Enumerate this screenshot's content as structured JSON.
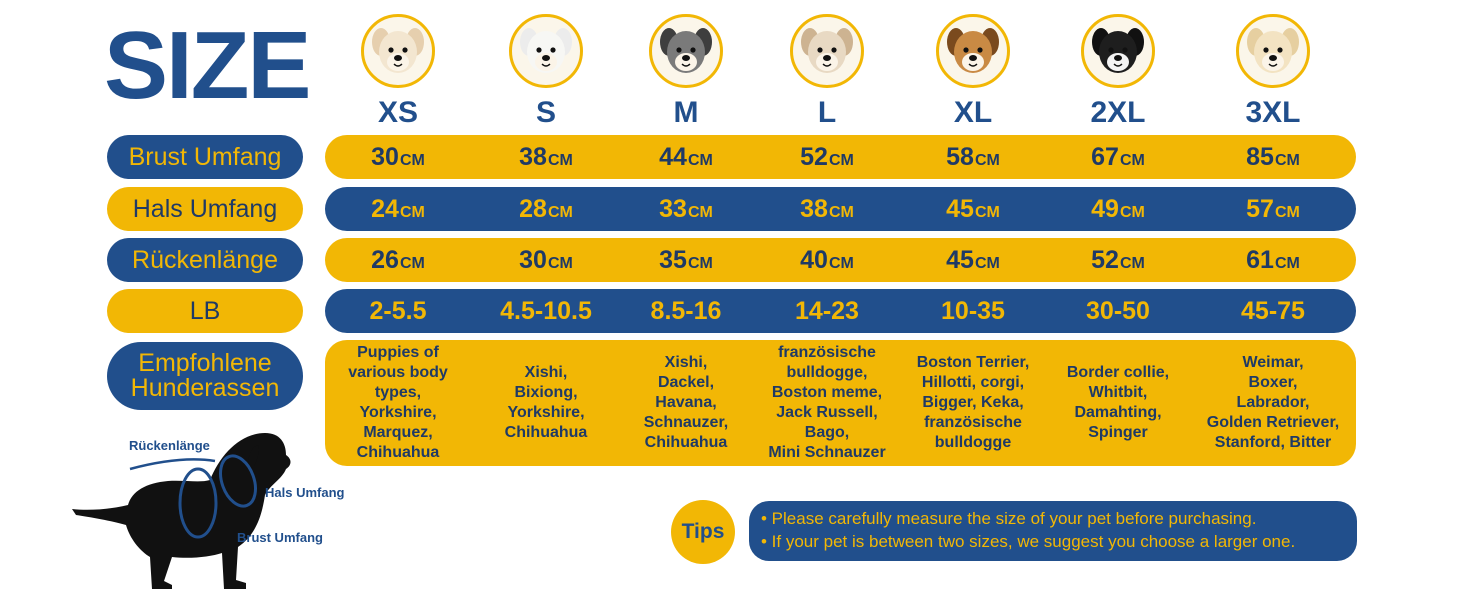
{
  "title": "SIZE",
  "sizes": [
    {
      "label": "XS",
      "icon": "chihuahua-icon"
    },
    {
      "label": "S",
      "icon": "westie-icon"
    },
    {
      "label": "M",
      "icon": "schnauzer-icon"
    },
    {
      "label": "L",
      "icon": "french-bulldog-icon"
    },
    {
      "label": "XL",
      "icon": "beagle-icon"
    },
    {
      "label": "2XL",
      "icon": "border-collie-icon"
    },
    {
      "label": "3XL",
      "icon": "labrador-icon"
    }
  ],
  "rows": {
    "brust": {
      "label": "Brust Umfang",
      "values": [
        "30",
        "38",
        "44",
        "52",
        "58",
        "67",
        "85"
      ],
      "unit": "CM"
    },
    "hals": {
      "label": "Hals Umfang",
      "values": [
        "24",
        "28",
        "33",
        "38",
        "45",
        "49",
        "57"
      ],
      "unit": "CM"
    },
    "ruecken": {
      "label": "Rückenlänge",
      "values": [
        "26",
        "30",
        "35",
        "40",
        "45",
        "52",
        "61"
      ],
      "unit": "CM"
    },
    "lb": {
      "label": "LB",
      "values": [
        "2-5.5",
        "4.5-10.5",
        "8.5-16",
        "14-23",
        "10-35",
        "30-50",
        "45-75"
      ]
    },
    "breeds": {
      "label_line1": "Empfohlene",
      "label_line2": "Hunderassen",
      "values": [
        [
          "Puppies of",
          "various body",
          "types,",
          "Yorkshire,",
          "Marquez,",
          "Chihuahua"
        ],
        [
          "Xishi,",
          "Bixiong,",
          "Yorkshire,",
          "Chihuahua"
        ],
        [
          "Xishi,",
          "Dackel,",
          "Havana,",
          "Schnauzer,",
          "Chihuahua"
        ],
        [
          "französische",
          "bulldogge,",
          "Boston meme,",
          "Jack Russell,",
          "Bago,",
          "Mini Schnauzer"
        ],
        [
          "Boston Terrier,",
          "Hillotti, corgi,",
          "Bigger, Keka,",
          "französische",
          "bulldogge"
        ],
        [
          "Border collie,",
          "Whitbit,",
          "Damahting,",
          "Spinger"
        ],
        [
          "Weimar,",
          "Boxer,",
          "Labrador,",
          "Golden Retriever,",
          "Stanford, Bitter"
        ]
      ]
    }
  },
  "diagram": {
    "ruecken_label": "Rückenlänge",
    "hals_label": "Hals Umfang",
    "brust_label": "Brust Umfang"
  },
  "tips": {
    "label": "Tips",
    "line1": "• Please carefully measure the size of your pet before purchasing.",
    "line2": "• If your pet is between two sizes, we suggest you choose a larger one."
  },
  "colors": {
    "yellow": "#f2b705",
    "blue": "#214f8c",
    "dark_text": "#1f3a66"
  }
}
